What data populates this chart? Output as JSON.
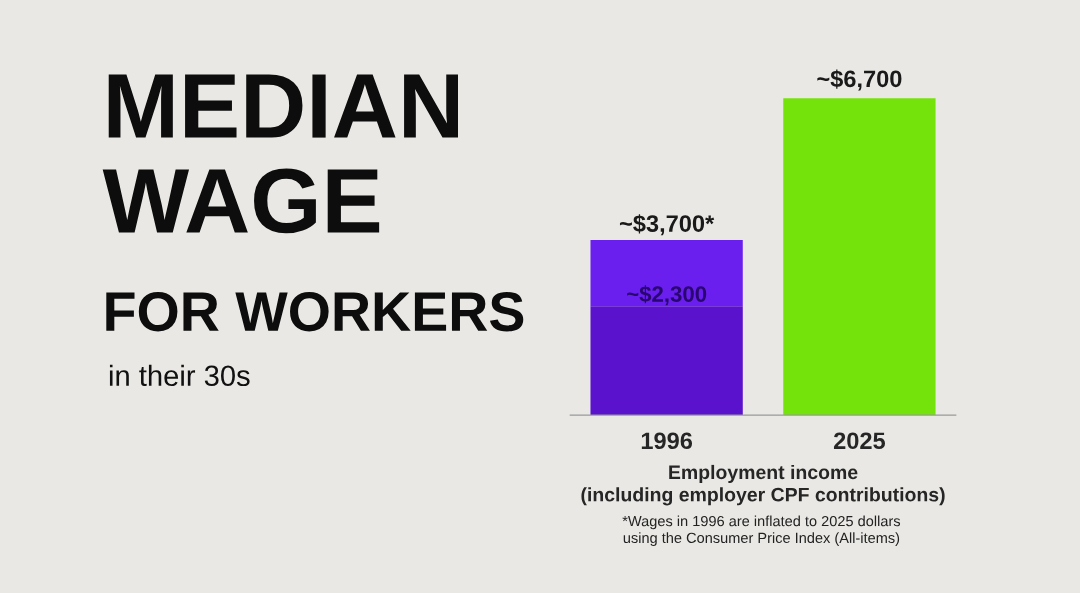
{
  "chart_data": {
    "type": "bar",
    "title": "MEDIAN\nWAGE\nFOR WORKERS",
    "subtitle": "in their 30s",
    "categories": [
      "1996",
      "2025"
    ],
    "stacked": true,
    "series": [
      {
        "color": "#5b12cc",
        "values": [
          2300,
          null
        ],
        "value_labels": [
          "~$2,300",
          null
        ]
      },
      {
        "colors": [
          "#6a1fee",
          "#74e30b"
        ],
        "values": [
          1400,
          6700
        ]
      }
    ],
    "totals": [
      "~$3,700*",
      "~$6,700"
    ],
    "xlabel": "Employment income\n(including employer CPF contributions)",
    "annotations": [
      "*Wages in 1996 are inflated to 2025 dollars\nusing the Consumer Price Index (All-items)"
    ],
    "grid": false,
    "legend": false
  }
}
